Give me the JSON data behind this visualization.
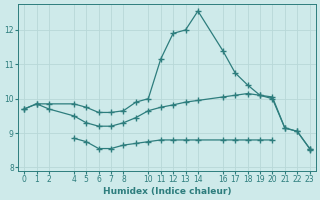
{
  "xlabel": "Humidex (Indice chaleur)",
  "background_color": "#ceeaea",
  "line_color": "#2d7d7d",
  "grid_color": "#b8d8d8",
  "xdata": [
    0,
    1,
    2,
    4,
    5,
    6,
    7,
    8,
    9,
    10,
    11,
    12,
    13,
    14,
    16,
    17,
    18,
    19,
    20,
    21,
    22,
    23
  ],
  "line_top": [
    9.7,
    9.85,
    9.85,
    9.85,
    9.75,
    9.6,
    9.6,
    9.65,
    9.9,
    10.0,
    11.15,
    11.9,
    12.0,
    12.55,
    11.4,
    10.75,
    10.4,
    10.1,
    10.05,
    9.15,
    9.05,
    8.55
  ],
  "line_mid": [
    9.7,
    9.85,
    9.7,
    9.5,
    9.3,
    9.2,
    9.2,
    9.3,
    9.45,
    9.65,
    9.75,
    9.82,
    9.9,
    9.95,
    10.05,
    10.1,
    10.15,
    10.1,
    10.0,
    9.15,
    9.05,
    8.55
  ],
  "line_bot": [
    null,
    null,
    null,
    8.85,
    8.75,
    8.55,
    8.55,
    8.65,
    8.7,
    8.75,
    8.8,
    8.8,
    8.8,
    8.8,
    8.8,
    8.8,
    8.8,
    8.8,
    8.8,
    null,
    null,
    8.5
  ],
  "ylim": [
    7.9,
    12.75
  ],
  "xlim": [
    -0.5,
    23.5
  ],
  "yticks": [
    8,
    9,
    10,
    11,
    12
  ],
  "xticks": [
    0,
    1,
    2,
    4,
    5,
    6,
    7,
    8,
    10,
    11,
    12,
    13,
    14,
    16,
    17,
    18,
    19,
    20,
    21,
    22,
    23
  ]
}
